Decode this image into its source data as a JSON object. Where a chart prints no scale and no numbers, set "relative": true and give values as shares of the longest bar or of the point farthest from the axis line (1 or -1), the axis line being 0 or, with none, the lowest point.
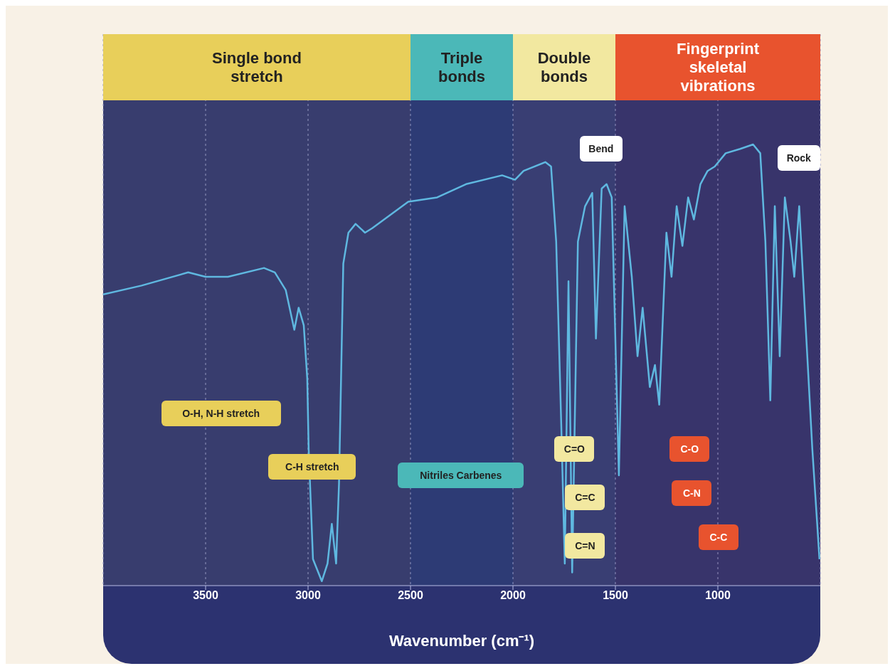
{
  "chart_data": {
    "type": "line",
    "xlabel": "Wavenumber (cm⁻¹)",
    "relative": true,
    "color": "#5fb8e0",
    "xlim": [
      4000,
      500
    ],
    "xticks": [
      3500,
      3000,
      2500,
      2000,
      1500,
      1000
    ],
    "grid": "x",
    "line_style": "solid",
    "marker": "none",
    "x": [
      4000,
      3813,
      3585,
      3500,
      3391,
      3215,
      3162,
      3109,
      3067,
      3046,
      3021,
      3004,
      2997,
      2976,
      2933,
      2905,
      2884,
      2863,
      2849,
      2828,
      2803,
      2768,
      2722,
      2687,
      2511,
      2370,
      2229,
      2053,
      1990,
      1948,
      1842,
      1814,
      1789,
      1764,
      1747,
      1729,
      1711,
      1683,
      1648,
      1613,
      1595,
      1567,
      1543,
      1518,
      1483,
      1455,
      1420,
      1392,
      1367,
      1332,
      1307,
      1286,
      1251,
      1226,
      1201,
      1173,
      1145,
      1117,
      1085,
      1050,
      1015,
      962,
      891,
      828,
      793,
      768,
      744,
      722,
      698,
      673,
      645,
      627,
      603,
      539,
      504
    ],
    "values": [
      0.66,
      0.68,
      0.71,
      0.7,
      0.7,
      0.72,
      0.71,
      0.67,
      0.58,
      0.63,
      0.59,
      0.47,
      0.31,
      0.06,
      0.01,
      0.05,
      0.14,
      0.05,
      0.23,
      0.73,
      0.8,
      0.82,
      0.8,
      0.81,
      0.87,
      0.88,
      0.91,
      0.93,
      0.92,
      0.94,
      0.96,
      0.95,
      0.78,
      0.36,
      0.05,
      0.69,
      0.03,
      0.78,
      0.86,
      0.89,
      0.56,
      0.9,
      0.91,
      0.88,
      0.25,
      0.86,
      0.7,
      0.52,
      0.63,
      0.45,
      0.5,
      0.41,
      0.8,
      0.7,
      0.86,
      0.77,
      0.88,
      0.83,
      0.91,
      0.94,
      0.95,
      0.98,
      0.99,
      1.0,
      0.98,
      0.78,
      0.42,
      0.86,
      0.52,
      0.88,
      0.78,
      0.7,
      0.86,
      0.31,
      0.06
    ],
    "bands": [
      {
        "axis": "x",
        "from": 4000,
        "to": 2500,
        "label": "Single bond stretch",
        "color": "#e8cf5a"
      },
      {
        "axis": "x",
        "from": 2500,
        "to": 2000,
        "label": "Triple bonds",
        "color": "#4bb8b8"
      },
      {
        "axis": "x",
        "from": 2000,
        "to": 1500,
        "label": "Double bonds",
        "color": "#f2e8a0"
      },
      {
        "axis": "x",
        "from": 1500,
        "to": 500,
        "label": "Fingerprint skeletal vibrations",
        "color": "#e8532e"
      }
    ],
    "annotations": [
      "O-H, N-H stretch",
      "C-H stretch",
      "Nitriles Carbenes",
      "C=O",
      "C=C",
      "C=N",
      "C-O",
      "C-N",
      "C-C",
      "Bend",
      "Rock"
    ]
  }
}
